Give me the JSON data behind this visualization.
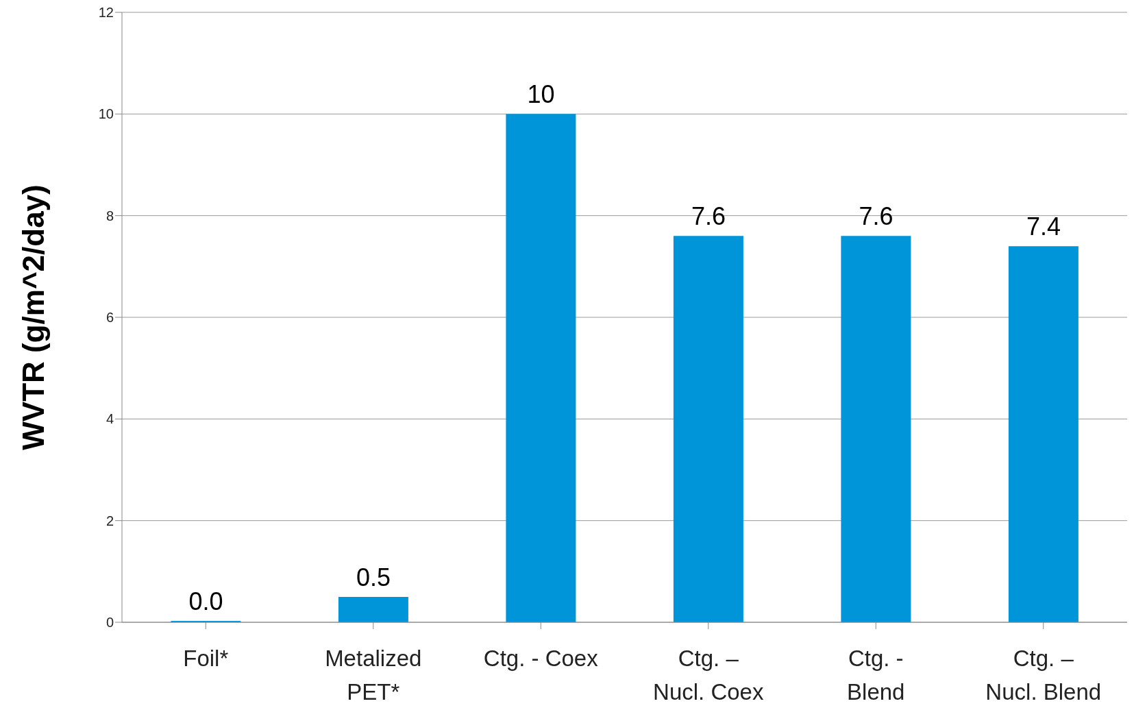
{
  "chart_data": {
    "type": "bar",
    "ylabel": "WVTR (g/m^2/day)",
    "categories": [
      "Foil*",
      "Metalized PET*",
      "Ctg. - Coex",
      "Ctg. – Nucl. Coex",
      "Ctg. - Blend",
      "Ctg. – Nucl. Blend"
    ],
    "values": [
      0,
      0.5,
      10,
      7.6,
      7.6,
      7.4
    ],
    "value_labels": [
      "0.0",
      "0.5",
      "10",
      "7.6",
      "7.6",
      "7.4"
    ],
    "color": "#0095d9",
    "ylim": [
      0,
      12
    ],
    "yticks": [
      0,
      2,
      4,
      6,
      8,
      10,
      12
    ],
    "grid": "y"
  }
}
